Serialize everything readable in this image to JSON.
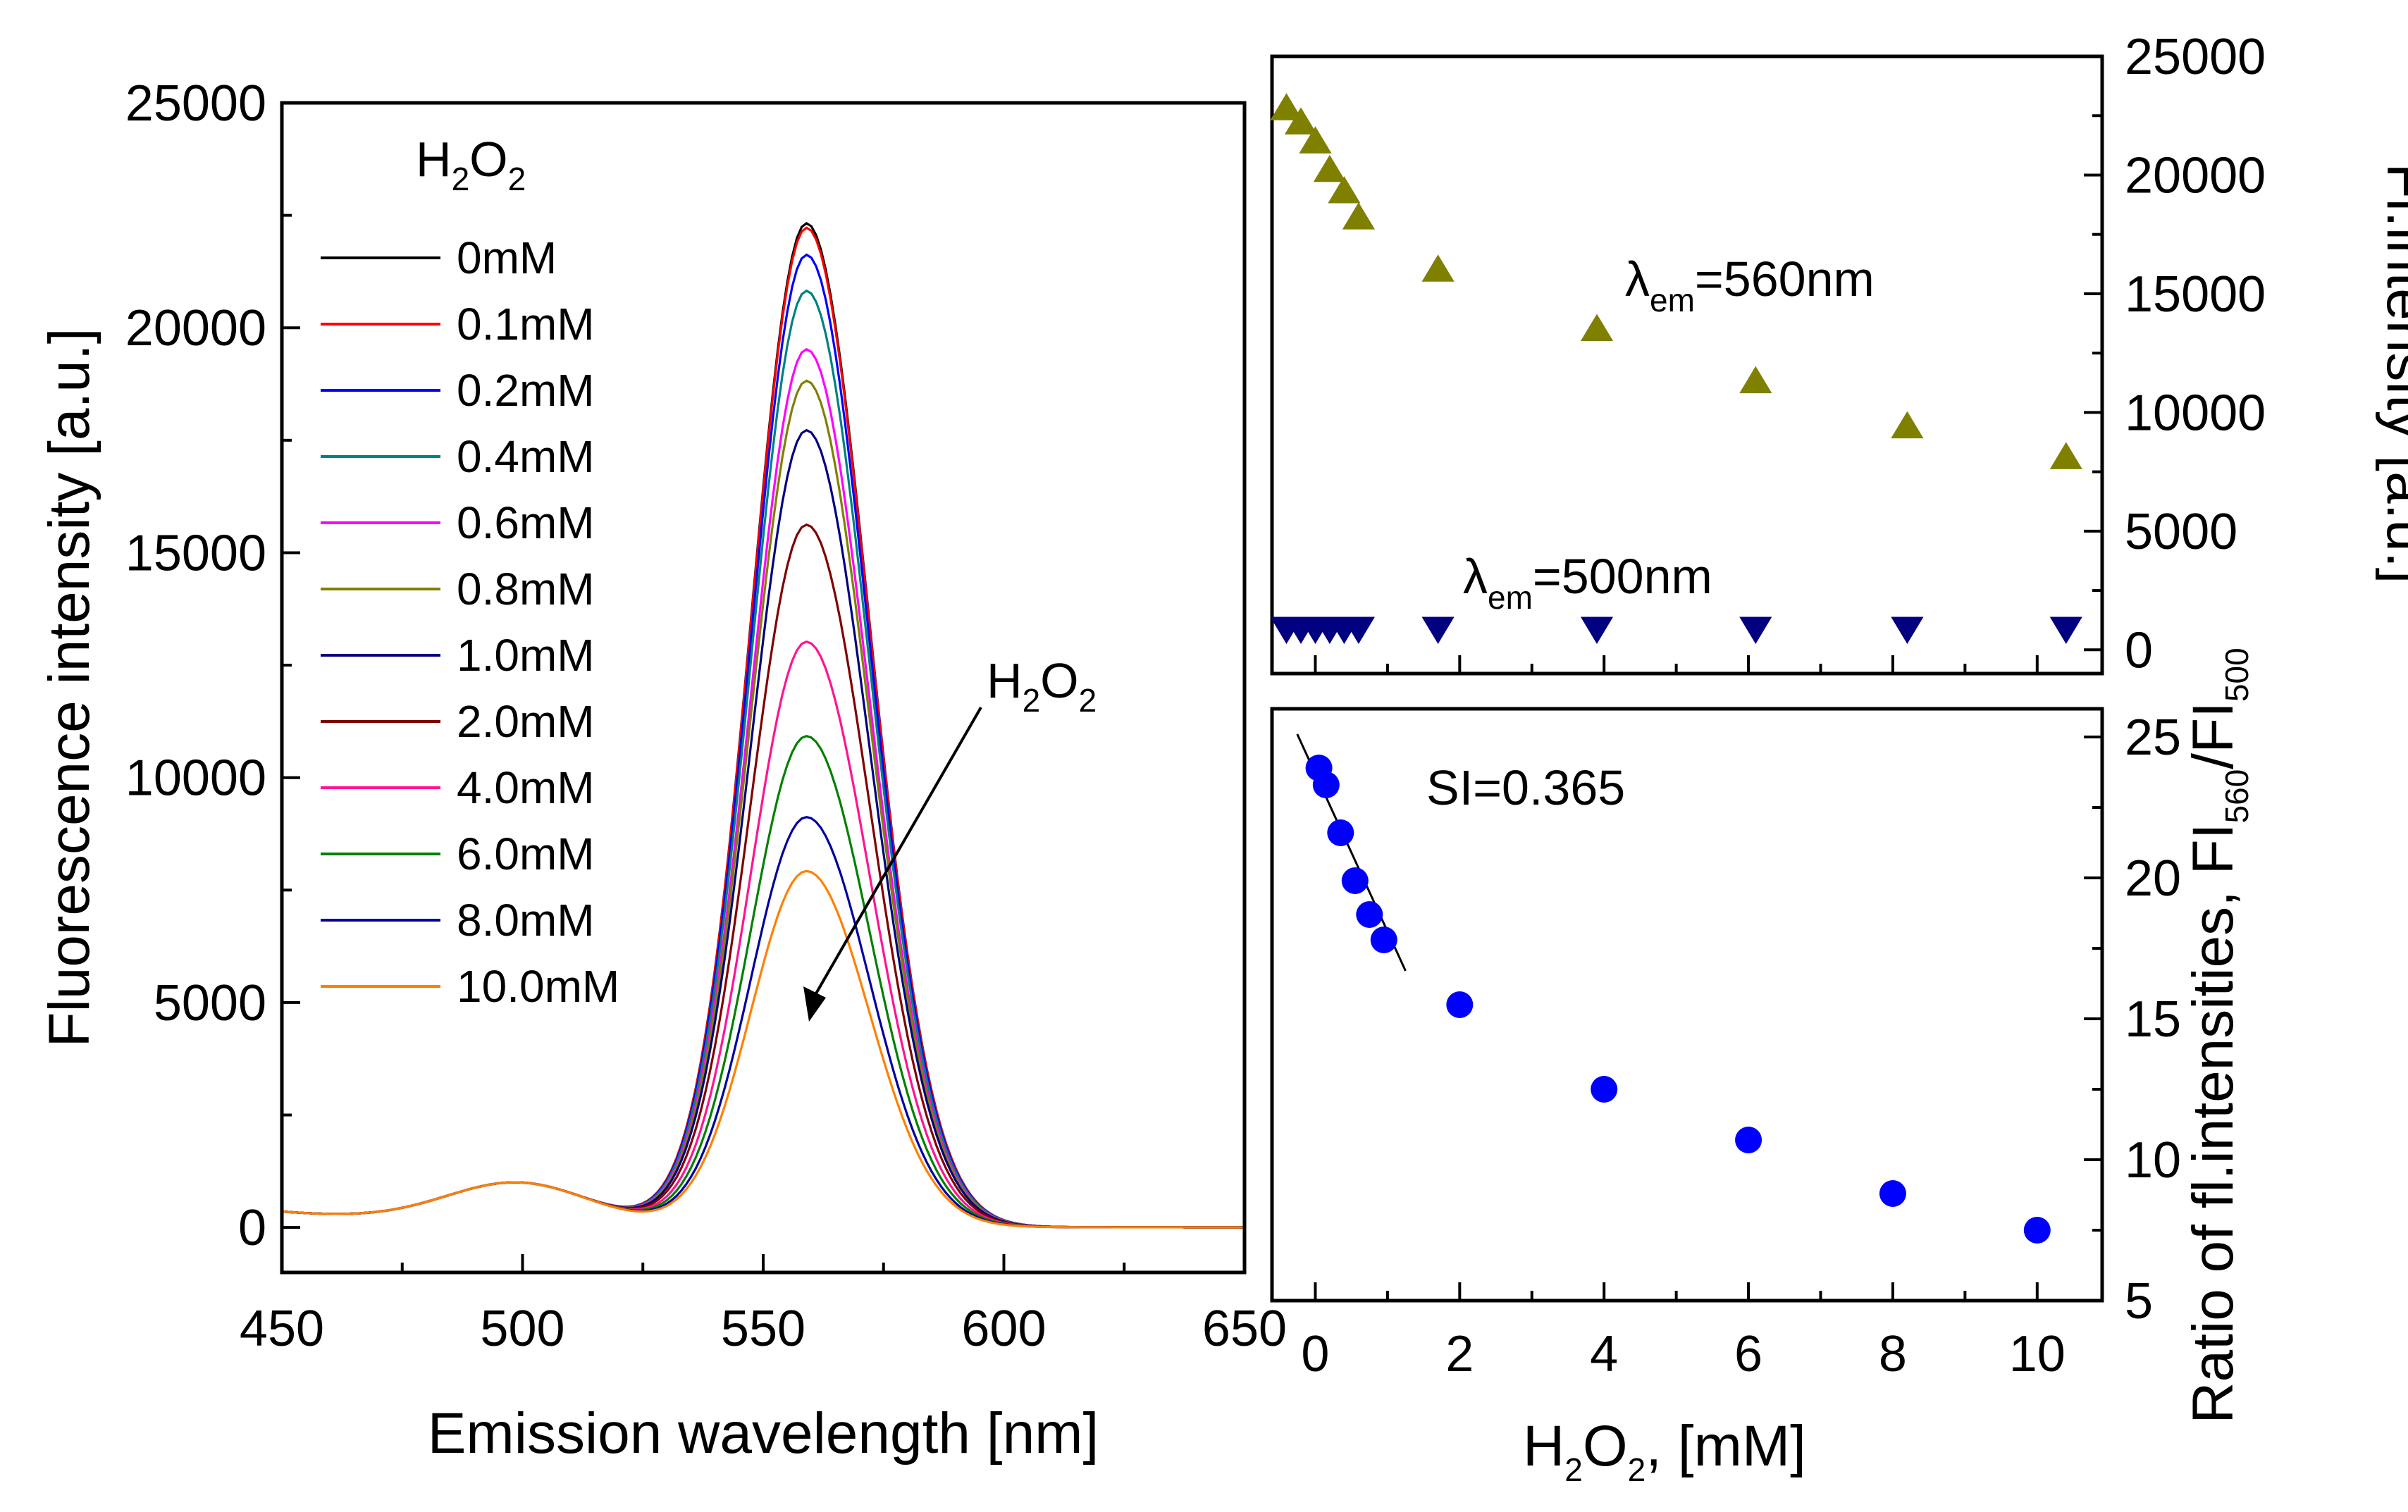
{
  "chart_data": [
    {
      "type": "line",
      "title": "",
      "xlabel": "Emission wavelength [nm]",
      "ylabel": "Fluorescence intensity [a.u.]",
      "xlim": [
        450,
        650
      ],
      "ylim": [
        -1000,
        25000
      ],
      "x_ticks": [
        "450",
        "500",
        "550",
        "600",
        "650"
      ],
      "y_ticks": [
        "0",
        "5000",
        "10000",
        "15000",
        "20000",
        "25000"
      ],
      "legend_title": "H2O2",
      "legend_title_parts": {
        "h": "H",
        "sub1": "2",
        "o": "O",
        "sub2": "2"
      },
      "legend_position": "top-left",
      "annotation": "H2O2 (arrow indicating decreasing peak with increasing H2O2)",
      "annotation_parts": {
        "h": "H",
        "sub1": "2",
        "o": "O",
        "sub2": "2"
      },
      "peak_wavelength": 559,
      "series": [
        {
          "name": "0mM",
          "color": "#000000",
          "peak": 22300
        },
        {
          "name": "0.1mM",
          "color": "#ff0000",
          "peak": 22200
        },
        {
          "name": "0.2mM",
          "color": "#0000ff",
          "peak": 21600
        },
        {
          "name": "0.4mM",
          "color": "#008080",
          "peak": 20800
        },
        {
          "name": "0.6mM",
          "color": "#ff00ff",
          "peak": 19500
        },
        {
          "name": "0.8mM",
          "color": "#808000",
          "peak": 18800
        },
        {
          "name": "1.0mM",
          "color": "#000080",
          "peak": 17700
        },
        {
          "name": "2.0mM",
          "color": "#800000",
          "peak": 15600
        },
        {
          "name": "4.0mM",
          "color": "#ff1493",
          "peak": 13000
        },
        {
          "name": "6.0mM",
          "color": "#008000",
          "peak": 10900
        },
        {
          "name": "8.0mM",
          "color": "#0000a0",
          "peak": 9100
        },
        {
          "name": "10.0mM",
          "color": "#ff8000",
          "peak": 7900
        }
      ]
    },
    {
      "type": "scatter",
      "title": "",
      "xlabel": "",
      "ylabel": "Fl.intensity [a.u.]",
      "xlim": [
        -0.6,
        10.9
      ],
      "ylim": [
        -1000,
        25000
      ],
      "y_ticks": [
        "0",
        "5000",
        "10000",
        "15000",
        "20000",
        "25000"
      ],
      "y_axis_side": "right",
      "series": [
        {
          "name": "λem=560nm",
          "label_parts": {
            "lambda": "λ",
            "sub": "em",
            "rest": "=560nm"
          },
          "marker": "triangle-up",
          "color": "#808000",
          "x": [
            -0.4,
            -0.2,
            0.0,
            0.2,
            0.4,
            0.6,
            1.7,
            3.9,
            6.1,
            8.2,
            10.4
          ],
          "y": [
            22800,
            22200,
            21400,
            20200,
            19300,
            18200,
            16000,
            13500,
            11300,
            9400,
            8100
          ]
        },
        {
          "name": "λem=500nm",
          "label_parts": {
            "lambda": "λ",
            "sub": "em",
            "rest": "=500nm"
          },
          "marker": "triangle-down",
          "color": "#000080",
          "x": [
            -0.4,
            -0.2,
            0.0,
            0.2,
            0.4,
            0.6,
            1.7,
            3.9,
            6.1,
            8.2,
            10.4
          ],
          "y": [
            900,
            900,
            900,
            900,
            900,
            900,
            900,
            900,
            900,
            900,
            900
          ]
        }
      ]
    },
    {
      "type": "scatter",
      "title": "",
      "xlabel": "H2O2, [mM]",
      "xlabel_parts": {
        "h": "H",
        "sub1": "2",
        "o": "O",
        "sub2": "2",
        "rest": ", [mM]"
      },
      "ylabel": "Ratio of fl.intensities, FI560/FI500",
      "ylabel_parts": {
        "main": "Ratio of fl.intensities, FI",
        "sub1": "560",
        "mid": "/FI",
        "sub2": "500"
      },
      "xlim": [
        -0.6,
        10.9
      ],
      "ylim": [
        5,
        26
      ],
      "x_ticks": [
        "0",
        "2",
        "4",
        "6",
        "8",
        "10"
      ],
      "y_ticks": [
        "5",
        "10",
        "15",
        "20",
        "25"
      ],
      "y_axis_side": "right",
      "annotation": "SI=0.365",
      "fit_line": {
        "x": [
          -0.25,
          1.25
        ],
        "y": [
          25.1,
          16.7
        ]
      },
      "series": [
        {
          "name": "ratio",
          "marker": "circle",
          "color": "#0000ff",
          "x": [
            0.05,
            0.15,
            0.35,
            0.55,
            0.75,
            0.95,
            2.0,
            4.0,
            6.0,
            8.0,
            10.0
          ],
          "y": [
            23.9,
            23.3,
            21.6,
            19.9,
            18.7,
            17.8,
            15.5,
            12.5,
            10.7,
            8.8,
            7.5
          ]
        }
      ]
    }
  ]
}
